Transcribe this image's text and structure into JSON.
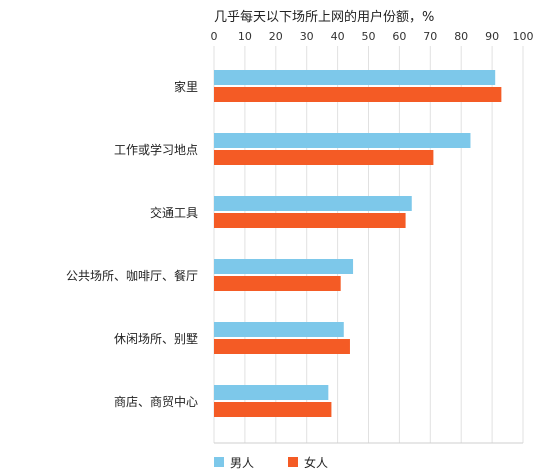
{
  "chart_data": {
    "type": "bar",
    "orientation": "horizontal",
    "title": "几乎每天以下场所上网的用户份额，%",
    "categories": [
      "家里",
      "工作或学习地点",
      "交通工具",
      "公共场所、咖啡厅、餐厅",
      "休闲场所、别墅",
      "商店、商贸中心"
    ],
    "series": [
      {
        "name": "男人",
        "color": "#7dc8ea",
        "values": [
          91,
          83,
          64,
          45,
          42,
          37
        ]
      },
      {
        "name": "女人",
        "color": "#f45b25",
        "values": [
          93,
          71,
          62,
          41,
          44,
          38
        ]
      }
    ],
    "x_ticks": [
      0,
      10,
      20,
      30,
      40,
      50,
      60,
      70,
      80,
      90,
      100
    ],
    "xlim": [
      0,
      100
    ],
    "x_axis_position": "top",
    "grid": true,
    "legend_position": "bottom-left"
  }
}
